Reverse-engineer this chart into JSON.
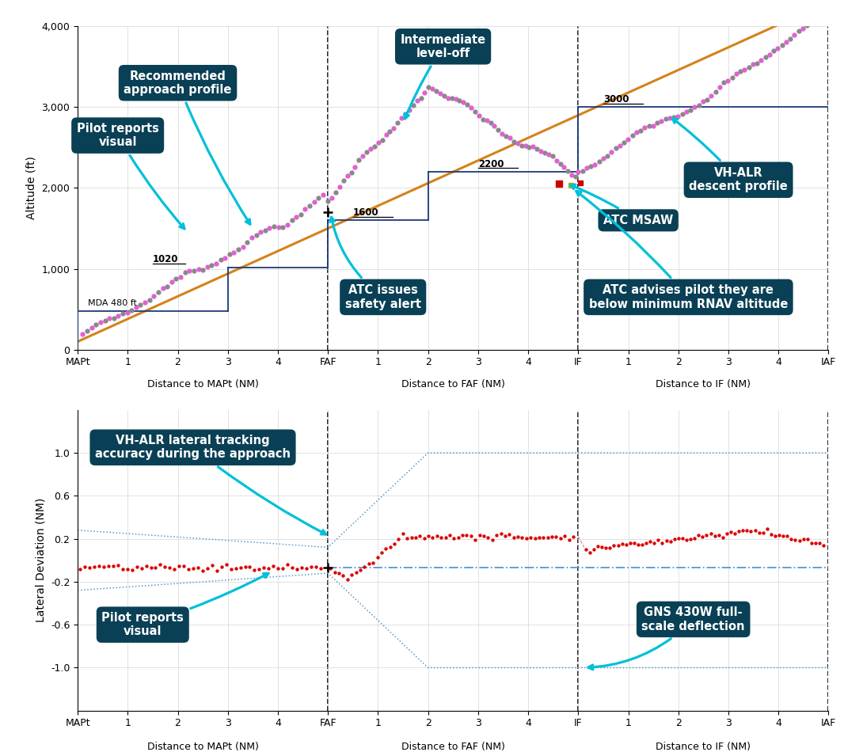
{
  "fig_width": 10.9,
  "fig_height": 9.5,
  "top": {
    "ylim": [
      0,
      4000
    ],
    "yticks": [
      0,
      1000,
      2000,
      3000,
      4000
    ],
    "ylabel": "Altitude (ft)",
    "orange_color": "#d4821a",
    "blue_step_color": "#1a3a7a",
    "pink_color": "#e060d0",
    "gray_color": "#888888",
    "red_sq_color": "#cc0000",
    "yellow_sq_color": "#ccaa00"
  },
  "bottom": {
    "ylim": [
      -1.4,
      1.4
    ],
    "yticks": [
      -1.0,
      -0.6,
      -0.2,
      0.2,
      0.6,
      1.0
    ],
    "ylabel": "Lateral Deviation (NM)",
    "red_color": "#dd0000",
    "boundary_color": "#5599cc",
    "centerline_color": "#5599cc"
  },
  "ann_fc": "#0a4055",
  "arrow_color": "#00c0d8"
}
